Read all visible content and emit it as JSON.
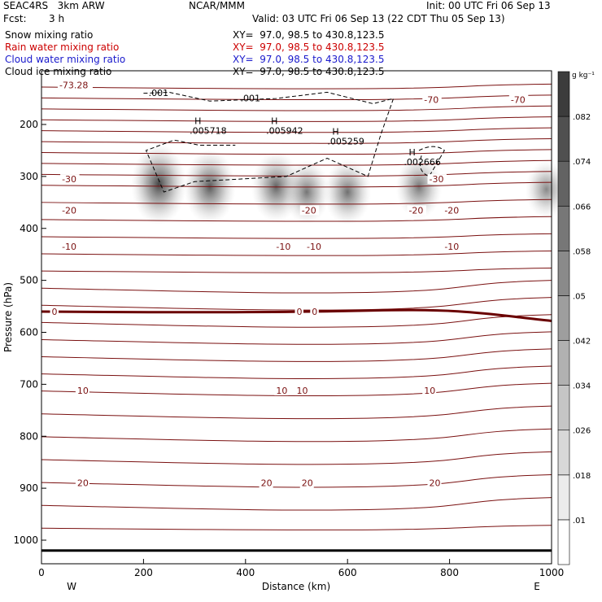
{
  "header": {
    "model": "SEAC4RS   3km ARW",
    "org": "NCAR/MMM",
    "init": "Init: 00 UTC Fri 06 Sep 13",
    "fcst_label": "Fcst:",
    "fcst_value": "3 h",
    "valid": "Valid: 03 UTC Fri 06 Sep 13 (22 CDT Thu 05 Sep 13)"
  },
  "legend_lines": [
    {
      "label": "Snow mixing ratio",
      "xy": "XY=  97.0, 98.5 to 430.8,123.5",
      "color": "#000000"
    },
    {
      "label": "Rain water mixing ratio",
      "xy": "XY=  97.0, 98.5 to 430.8,123.5",
      "color": "#cc0000"
    },
    {
      "label": "Cloud water mixing ratio",
      "xy": "XY=  97.0, 98.5 to 430.8,123.5",
      "color": "#1a1acc"
    },
    {
      "label": "Cloud ice mixing ratio",
      "xy": "XY=  97.0, 98.5 to 430.8,123.5",
      "color": "#000000"
    }
  ],
  "chart_data": {
    "type": "cross-section contour",
    "xlabel": "Distance (km)",
    "ylabel": "Pressure (hPa)",
    "x_ticks": [
      0,
      200,
      400,
      600,
      800,
      1000
    ],
    "x_tick_labels": [
      "0",
      "200",
      "400",
      "600",
      "800",
      "1000"
    ],
    "y_ticks": [
      200,
      300,
      400,
      500,
      600,
      700,
      800,
      900,
      1000
    ],
    "y_tick_labels": [
      "200",
      "300",
      "400",
      "500",
      "600",
      "700",
      "800",
      "900",
      "1000"
    ],
    "xlim": [
      0,
      1000
    ],
    "ylim_pressure": [
      1050,
      115
    ],
    "direction_left": "W",
    "direction_right": "E",
    "colorbar": {
      "unit": "g kg⁻¹",
      "levels": [
        0.01,
        0.018,
        0.026,
        0.034,
        0.042,
        0.05,
        0.058,
        0.066,
        0.074,
        0.082
      ],
      "labels": [
        ".01",
        ".018",
        ".026",
        ".034",
        ".042",
        ".05",
        ".058",
        ".066",
        ".074",
        ".082"
      ]
    },
    "temperature_contours": [
      {
        "value": -73.28,
        "label": "-73.28",
        "type": "min"
      },
      {
        "value": -70,
        "labels_x_km": [
          750,
          920
        ],
        "pressure": 152
      },
      {
        "value": -30,
        "labels_x_km": [
          40,
          760
        ],
        "pressure": 305
      },
      {
        "value": -20,
        "labels_x_km": [
          40,
          510,
          720,
          790
        ],
        "pressure": 365
      },
      {
        "value": -10,
        "labels_x_km": [
          40,
          460,
          520,
          790
        ],
        "pressure": 435
      },
      {
        "value": 0,
        "labels_x_km": [
          20,
          500,
          530
        ],
        "pressure": 560
      },
      {
        "value": 10,
        "labels_x_km": [
          70,
          460,
          500,
          750
        ],
        "pressure": 712
      },
      {
        "value": 20,
        "labels_x_km": [
          70,
          430,
          510,
          760
        ],
        "pressure": 890
      }
    ],
    "snow_maxima": [
      {
        "label": "H",
        "value": ".005718",
        "x_km": 300,
        "pressure": 215
      },
      {
        "label": "H",
        "value": ".005942",
        "x_km": 450,
        "pressure": 215
      },
      {
        "label": "H",
        "value": ".005259",
        "x_km": 570,
        "pressure": 235
      },
      {
        "label": "H",
        "value": ".002666",
        "x_km": 720,
        "pressure": 275
      }
    ],
    "cloud_ice_labels": [
      {
        "value": ".001",
        "x_km": 210,
        "pressure": 145
      },
      {
        "value": ".001",
        "x_km": 390,
        "pressure": 155
      }
    ],
    "shaded_cells": [
      {
        "x_km": 230,
        "pressure": 315,
        "intensity": 0.085
      },
      {
        "x_km": 330,
        "pressure": 320,
        "intensity": 0.07
      },
      {
        "x_km": 460,
        "pressure": 320,
        "intensity": 0.06
      },
      {
        "x_km": 520,
        "pressure": 330,
        "intensity": 0.045
      },
      {
        "x_km": 600,
        "pressure": 330,
        "intensity": 0.05
      },
      {
        "x_km": 740,
        "pressure": 320,
        "intensity": 0.045
      },
      {
        "x_km": 990,
        "pressure": 325,
        "intensity": 0.03
      }
    ]
  }
}
